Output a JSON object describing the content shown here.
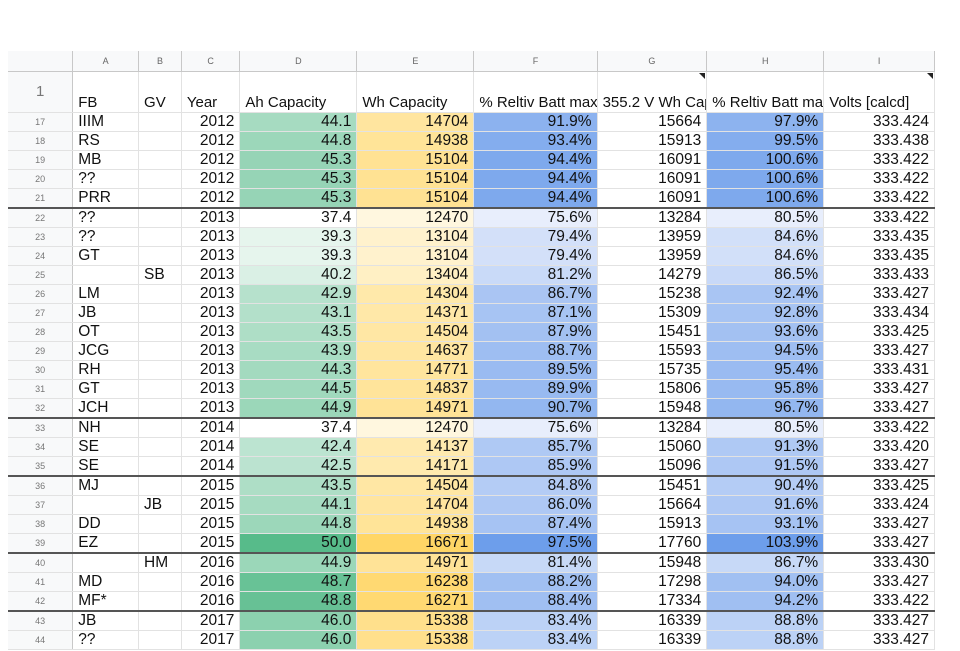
{
  "column_letters": [
    "A",
    "B",
    "C",
    "D",
    "E",
    "F",
    "G",
    "H",
    "I"
  ],
  "header_row": {
    "row_number": "1",
    "cells": [
      "FB",
      "GV",
      "Year",
      "Ah Capacity",
      "Wh Capacity",
      "% Reltiv Batt max",
      "355.2 V Wh Cap",
      "% Reltiv Batt max",
      "Volts [calcd]"
    ]
  },
  "rows": [
    {
      "n": "17",
      "a": "IIIM",
      "b": "",
      "year": "2012",
      "ah": "44.1",
      "wh": "14704",
      "f": "91.9%",
      "g": "15664",
      "h": "97.9%",
      "volts": "333.424"
    },
    {
      "n": "18",
      "a": "RS",
      "b": "",
      "year": "2012",
      "ah": "44.8",
      "wh": "14938",
      "f": "93.4%",
      "g": "15913",
      "h": "99.5%",
      "volts": "333.438"
    },
    {
      "n": "19",
      "a": "MB",
      "b": "",
      "year": "2012",
      "ah": "45.3",
      "wh": "15104",
      "f": "94.4%",
      "g": "16091",
      "h": "100.6%",
      "volts": "333.422"
    },
    {
      "n": "20",
      "a": "??",
      "b": "",
      "year": "2012",
      "ah": "45.3",
      "wh": "15104",
      "f": "94.4%",
      "g": "16091",
      "h": "100.6%",
      "volts": "333.422"
    },
    {
      "n": "21",
      "a": "PRR",
      "b": "",
      "year": "2012",
      "ah": "45.3",
      "wh": "15104",
      "f": "94.4%",
      "g": "16091",
      "h": "100.6%",
      "volts": "333.422"
    },
    {
      "n": "22",
      "a": "??",
      "b": "",
      "year": "2013",
      "ah": "37.4",
      "wh": "12470",
      "f": "75.6%",
      "g": "13284",
      "h": "80.5%",
      "volts": "333.422"
    },
    {
      "n": "23",
      "a": "??",
      "b": "",
      "year": "2013",
      "ah": "39.3",
      "wh": "13104",
      "f": "79.4%",
      "g": "13959",
      "h": "84.6%",
      "volts": "333.435"
    },
    {
      "n": "24",
      "a": "GT",
      "b": "",
      "year": "2013",
      "ah": "39.3",
      "wh": "13104",
      "f": "79.4%",
      "g": "13959",
      "h": "84.6%",
      "volts": "333.435"
    },
    {
      "n": "25",
      "a": "",
      "b": "SB",
      "year": "2013",
      "ah": "40.2",
      "wh": "13404",
      "f": "81.2%",
      "g": "14279",
      "h": "86.5%",
      "volts": "333.433"
    },
    {
      "n": "26",
      "a": "LM",
      "b": "",
      "year": "2013",
      "ah": "42.9",
      "wh": "14304",
      "f": "86.7%",
      "g": "15238",
      "h": "92.4%",
      "volts": "333.427"
    },
    {
      "n": "27",
      "a": "JB",
      "b": "",
      "year": "2013",
      "ah": "43.1",
      "wh": "14371",
      "f": "87.1%",
      "g": "15309",
      "h": "92.8%",
      "volts": "333.434"
    },
    {
      "n": "28",
      "a": "OT",
      "b": "",
      "year": "2013",
      "ah": "43.5",
      "wh": "14504",
      "f": "87.9%",
      "g": "15451",
      "h": "93.6%",
      "volts": "333.425"
    },
    {
      "n": "29",
      "a": "JCG",
      "b": "",
      "year": "2013",
      "ah": "43.9",
      "wh": "14637",
      "f": "88.7%",
      "g": "15593",
      "h": "94.5%",
      "volts": "333.427"
    },
    {
      "n": "30",
      "a": "RH",
      "b": "",
      "year": "2013",
      "ah": "44.3",
      "wh": "14771",
      "f": "89.5%",
      "g": "15735",
      "h": "95.4%",
      "volts": "333.431"
    },
    {
      "n": "31",
      "a": "GT",
      "b": "",
      "year": "2013",
      "ah": "44.5",
      "wh": "14837",
      "f": "89.9%",
      "g": "15806",
      "h": "95.8%",
      "volts": "333.427"
    },
    {
      "n": "32",
      "a": "JCH",
      "b": "",
      "year": "2013",
      "ah": "44.9",
      "wh": "14971",
      "f": "90.7%",
      "g": "15948",
      "h": "96.7%",
      "volts": "333.427"
    },
    {
      "n": "33",
      "a": "NH",
      "b": "",
      "year": "2014",
      "ah": "37.4",
      "wh": "12470",
      "f": "75.6%",
      "g": "13284",
      "h": "80.5%",
      "volts": "333.422"
    },
    {
      "n": "34",
      "a": "SE",
      "b": "",
      "year": "2014",
      "ah": "42.4",
      "wh": "14137",
      "f": "85.7%",
      "g": "15060",
      "h": "91.3%",
      "volts": "333.420"
    },
    {
      "n": "35",
      "a": "SE",
      "b": "",
      "year": "2014",
      "ah": "42.5",
      "wh": "14171",
      "f": "85.9%",
      "g": "15096",
      "h": "91.5%",
      "volts": "333.427"
    },
    {
      "n": "36",
      "a": "MJ",
      "b": "",
      "year": "2015",
      "ah": "43.5",
      "wh": "14504",
      "f": "84.8%",
      "g": "15451",
      "h": "90.4%",
      "volts": "333.425"
    },
    {
      "n": "37",
      "a": "",
      "b": "JB",
      "year": "2015",
      "ah": "44.1",
      "wh": "14704",
      "f": "86.0%",
      "g": "15664",
      "h": "91.6%",
      "volts": "333.424"
    },
    {
      "n": "38",
      "a": "DD",
      "b": "",
      "year": "2015",
      "ah": "44.8",
      "wh": "14938",
      "f": "87.4%",
      "g": "15913",
      "h": "93.1%",
      "volts": "333.427"
    },
    {
      "n": "39",
      "a": "EZ",
      "b": "",
      "year": "2015",
      "ah": "50.0",
      "wh": "16671",
      "f": "97.5%",
      "g": "17760",
      "h": "103.9%",
      "volts": "333.427"
    },
    {
      "n": "40",
      "a": "",
      "b": "HM",
      "year": "2016",
      "ah": "44.9",
      "wh": "14971",
      "f": "81.4%",
      "g": "15948",
      "h": "86.7%",
      "volts": "333.430"
    },
    {
      "n": "41",
      "a": "MD",
      "b": "",
      "year": "2016",
      "ah": "48.7",
      "wh": "16238",
      "f": "88.2%",
      "g": "17298",
      "h": "94.0%",
      "volts": "333.427"
    },
    {
      "n": "42",
      "a": "MF*",
      "b": "",
      "year": "2016",
      "ah": "48.8",
      "wh": "16271",
      "f": "88.4%",
      "g": "17334",
      "h": "94.2%",
      "volts": "333.422"
    },
    {
      "n": "43",
      "a": "JB",
      "b": "",
      "year": "2017",
      "ah": "46.0",
      "wh": "15338",
      "f": "83.4%",
      "g": "16339",
      "h": "88.8%",
      "volts": "333.427"
    },
    {
      "n": "44",
      "a": "??",
      "b": "",
      "year": "2017",
      "ah": "46.0",
      "wh": "15338",
      "f": "83.4%",
      "g": "16339",
      "h": "88.8%",
      "volts": "333.427"
    }
  ],
  "group_start_rows": [
    "22",
    "33",
    "36",
    "40",
    "43"
  ],
  "colors": {
    "ah_scale_low": "#ffffff",
    "ah_scale_high": "#57bb8a",
    "wh_scale_low": "#fff7df",
    "wh_scale_high": "#ffd666",
    "pct_scale_low": "#e8eefc",
    "pct_scale_high": "#6d9eeb"
  }
}
